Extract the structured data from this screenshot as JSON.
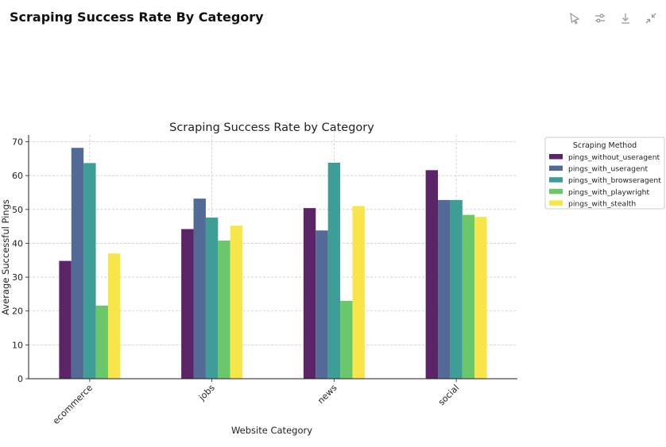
{
  "header": {
    "title": "Scraping Success Rate By Category",
    "toolbar": [
      {
        "icon": "pin-icon"
      },
      {
        "icon": "sliders-icon"
      },
      {
        "icon": "download-icon"
      },
      {
        "icon": "collapse-icon"
      }
    ]
  },
  "chart_data": {
    "type": "bar",
    "title": "Scraping Success Rate by Category",
    "xlabel": "Website Category",
    "ylabel": "Average Successful Pings",
    "categories": [
      "ecommerce",
      "jobs",
      "news",
      "social"
    ],
    "ylim": [
      0,
      72
    ],
    "yticks": [
      0,
      10,
      20,
      30,
      40,
      50,
      60,
      70
    ],
    "grid": true,
    "legend_title": "Scraping Method",
    "legend_position": "outside-right",
    "series": [
      {
        "name": "pings_without_useragent",
        "color": "#5b2466",
        "values": [
          34.8,
          44.2,
          50.4,
          61.6
        ]
      },
      {
        "name": "pings_with_useragent",
        "color": "#526a95",
        "values": [
          68.2,
          53.2,
          43.8,
          52.8
        ]
      },
      {
        "name": "pings_with_browseragent",
        "color": "#3e9d97",
        "values": [
          63.7,
          47.6,
          63.8,
          52.8
        ]
      },
      {
        "name": "pings_with_playwright",
        "color": "#6ac86a",
        "values": [
          21.6,
          40.8,
          23.0,
          48.4
        ]
      },
      {
        "name": "pings_with_stealth",
        "color": "#f7e54a",
        "values": [
          37.0,
          45.2,
          51.0,
          47.8
        ]
      }
    ]
  }
}
